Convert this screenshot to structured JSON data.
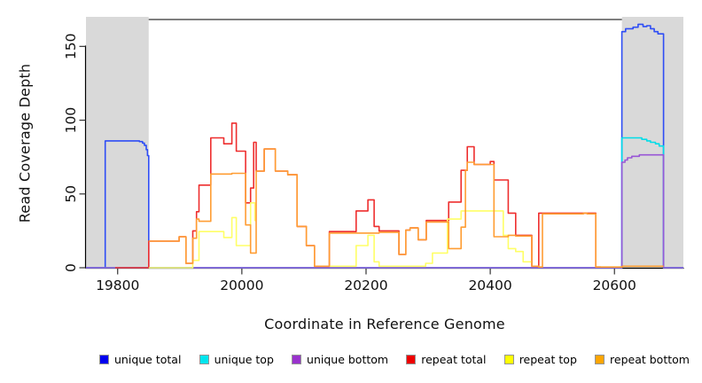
{
  "legend": {
    "items": [
      {
        "label": "unique total",
        "color": "#0000ee"
      },
      {
        "label": "unique top",
        "color": "#00e5ee"
      },
      {
        "label": "unique bottom",
        "color": "#9932cc"
      },
      {
        "label": "repeat total",
        "color": "#ee0000"
      },
      {
        "label": "repeat top",
        "color": "#ffff00"
      },
      {
        "label": "repeat bottom",
        "color": "#ffa500"
      }
    ]
  },
  "chart_data": {
    "type": "line",
    "title": "",
    "xlabel": "Coordinate in Reference Genome",
    "ylabel": "Read Coverage Depth",
    "xlim": [
      19749,
      20711
    ],
    "ylim": [
      0,
      170
    ],
    "xticks": [
      19800,
      20000,
      20200,
      20400,
      20600
    ],
    "yticks": [
      0,
      50,
      100,
      150
    ],
    "grid": false,
    "legend_position": "bottom",
    "shade_color": "#d9d9d9",
    "shaded_regions": [
      {
        "x0": 19749,
        "x1": 19850
      },
      {
        "x0": 20612,
        "x1": 20711
      }
    ],
    "series": [
      {
        "name": "unique total",
        "color": "#2e4df5",
        "steps": [
          [
            19749,
            0
          ],
          [
            19780,
            86
          ],
          [
            19835,
            85.5
          ],
          [
            19840,
            84.5
          ],
          [
            19843,
            83
          ],
          [
            19846,
            80
          ],
          [
            19848,
            76
          ],
          [
            19850,
            0
          ],
          [
            20612,
            160
          ],
          [
            20618,
            162
          ],
          [
            20630,
            163
          ],
          [
            20638,
            165
          ],
          [
            20646,
            163.5
          ],
          [
            20652,
            164
          ],
          [
            20658,
            162
          ],
          [
            20664,
            160
          ],
          [
            20670,
            158.5
          ],
          [
            20679,
            0
          ],
          [
            20711,
            null
          ]
        ]
      },
      {
        "name": "unique top",
        "color": "#00dde8",
        "steps": [
          [
            19749,
            0
          ],
          [
            20612,
            88
          ],
          [
            20644,
            87
          ],
          [
            20652,
            86
          ],
          [
            20658,
            85
          ],
          [
            20666,
            84
          ],
          [
            20672,
            82.5
          ],
          [
            20679,
            0
          ],
          [
            20711,
            null
          ]
        ]
      },
      {
        "name": "unique bottom",
        "color": "#9956d6",
        "steps": [
          [
            19749,
            0
          ],
          [
            20612,
            71.5
          ],
          [
            20617,
            73
          ],
          [
            20621,
            74.5
          ],
          [
            20628,
            75.5
          ],
          [
            20640,
            76.5
          ],
          [
            20679,
            0
          ],
          [
            20711,
            null
          ]
        ]
      },
      {
        "name": "repeat total",
        "color": "#ee2e2e",
        "steps": [
          [
            19796,
            0
          ],
          [
            19850,
            18
          ],
          [
            19899,
            21
          ],
          [
            19910,
            3
          ],
          [
            19921,
            25
          ],
          [
            19927,
            38
          ],
          [
            19931,
            56
          ],
          [
            19950,
            88
          ],
          [
            19971,
            84
          ],
          [
            19984,
            98
          ],
          [
            19991,
            79
          ],
          [
            20006,
            44
          ],
          [
            20014,
            54
          ],
          [
            20019,
            85
          ],
          [
            20023,
            65.5
          ],
          [
            20036,
            80.5
          ],
          [
            20054,
            65.5
          ],
          [
            20074,
            63
          ],
          [
            20089,
            28
          ],
          [
            20104,
            15
          ],
          [
            20117,
            1
          ],
          [
            20141,
            24.5
          ],
          [
            20184,
            38.5
          ],
          [
            20203,
            46
          ],
          [
            20213,
            28
          ],
          [
            20221,
            25
          ],
          [
            20253,
            9
          ],
          [
            20264,
            25.5
          ],
          [
            20271,
            27
          ],
          [
            20284,
            19
          ],
          [
            20297,
            32
          ],
          [
            20333,
            44.5
          ],
          [
            20353,
            66
          ],
          [
            20363,
            82
          ],
          [
            20374,
            70
          ],
          [
            20400,
            72
          ],
          [
            20406,
            59.5
          ],
          [
            20429,
            37
          ],
          [
            20441,
            22
          ],
          [
            20467,
            1
          ],
          [
            20478,
            37
          ],
          [
            20570,
            0.5
          ],
          [
            20578,
            null
          ]
        ]
      },
      {
        "name": "repeat top",
        "color": "#ffff66",
        "steps": [
          [
            19850,
            0
          ],
          [
            19921,
            5
          ],
          [
            19931,
            24.5
          ],
          [
            19971,
            20.5
          ],
          [
            19984,
            34
          ],
          [
            19991,
            15
          ],
          [
            20014,
            44
          ],
          [
            20021,
            32
          ],
          [
            20023,
            null
          ],
          [
            20141,
            1
          ],
          [
            20184,
            15
          ],
          [
            20203,
            22
          ],
          [
            20213,
            4
          ],
          [
            20221,
            1
          ],
          [
            20296,
            3
          ],
          [
            20307,
            10
          ],
          [
            20331,
            33
          ],
          [
            20353,
            38.5
          ],
          [
            20421,
            22
          ],
          [
            20429,
            13
          ],
          [
            20441,
            11
          ],
          [
            20453,
            4
          ],
          [
            20467,
            null
          ]
        ]
      },
      {
        "name": "repeat bottom",
        "color": "#ff9d33",
        "steps": [
          [
            19850,
            18
          ],
          [
            19899,
            21
          ],
          [
            19910,
            3
          ],
          [
            19921,
            20
          ],
          [
            19927,
            33
          ],
          [
            19931,
            31.5
          ],
          [
            19950,
            63.5
          ],
          [
            19984,
            64
          ],
          [
            20006,
            29
          ],
          [
            20014,
            10
          ],
          [
            20023,
            65.5
          ],
          [
            20036,
            80.5
          ],
          [
            20054,
            65.5
          ],
          [
            20074,
            63
          ],
          [
            20089,
            28
          ],
          [
            20104,
            15
          ],
          [
            20117,
            1
          ],
          [
            20141,
            23.5
          ],
          [
            20221,
            24
          ],
          [
            20253,
            9
          ],
          [
            20264,
            25.5
          ],
          [
            20271,
            27
          ],
          [
            20284,
            19
          ],
          [
            20297,
            31
          ],
          [
            20333,
            13
          ],
          [
            20353,
            27.5
          ],
          [
            20360,
            66
          ],
          [
            20363,
            71.5
          ],
          [
            20374,
            70
          ],
          [
            20406,
            21
          ],
          [
            20429,
            22
          ],
          [
            20441,
            21.5
          ],
          [
            20467,
            1
          ],
          [
            20478,
            0.5
          ],
          [
            20484,
            36.5
          ],
          [
            20550,
            37
          ],
          [
            20556,
            36.5
          ],
          [
            20570,
            0.5
          ],
          [
            20613,
            1
          ],
          [
            20679,
            null
          ]
        ]
      }
    ]
  }
}
